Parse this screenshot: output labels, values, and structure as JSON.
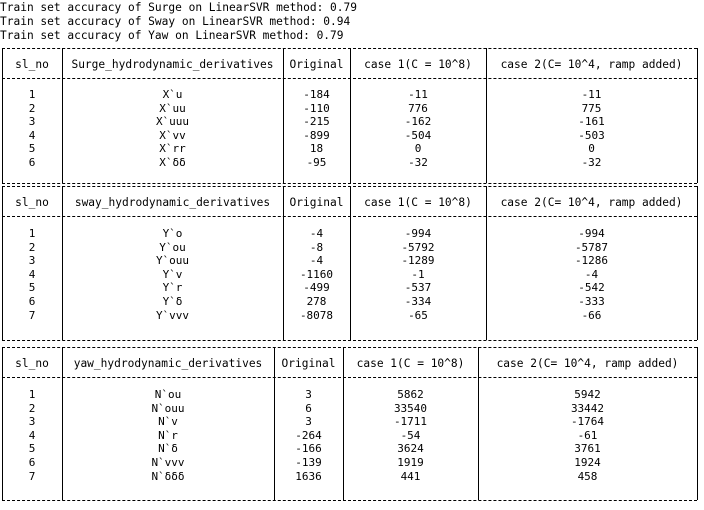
{
  "accuracy_lines": [
    "Train set accuracy of Surge on LinearSVR method: 0.79",
    "Train set accuracy of Sway on LinearSVR method: 0.94",
    "Train set accuracy of Yaw on LinearSVR method: 0.79"
  ],
  "tables": [
    {
      "headers": [
        "sl_no",
        "Surge_hydrodynamic_derivatives",
        "Original",
        "case 1(C = 10^8)",
        "case 2(C= 10^4, ramp added)"
      ],
      "rows": [
        [
          "1",
          "X`u",
          "-184",
          "-11",
          "-11"
        ],
        [
          "2",
          "X`uu",
          "-110",
          "776",
          "775"
        ],
        [
          "3",
          "X`uuu",
          "-215",
          "-162",
          "-161"
        ],
        [
          "4",
          "X`vv",
          "-899",
          "-504",
          "-503"
        ],
        [
          "5",
          "X`rr",
          "18",
          "0",
          "0"
        ],
        [
          "6",
          "X`δδ",
          "-95",
          "-32",
          "-32"
        ]
      ]
    },
    {
      "headers": [
        "sl_no",
        "sway_hydrodynamic_derivatives",
        "Original",
        "case 1(C = 10^8)",
        "case 2(C= 10^4, ramp added)"
      ],
      "rows": [
        [
          "1",
          "Y`o",
          "-4",
          "-994",
          "-994"
        ],
        [
          "2",
          "Y`ou",
          "-8",
          "-5792",
          "-5787"
        ],
        [
          "3",
          "Y`ouu",
          "-4",
          "-1289",
          "-1286"
        ],
        [
          "4",
          "Y`v",
          "-1160",
          "-1",
          "-4"
        ],
        [
          "5",
          "Y`r",
          "-499",
          "-537",
          "-542"
        ],
        [
          "6",
          "Y`δ",
          "278",
          "-334",
          "-333"
        ],
        [
          "7",
          "Y`vvv",
          "-8078",
          "-65",
          "-66"
        ]
      ]
    },
    {
      "headers": [
        "sl_no",
        "yaw_hydrodynamic_derivatives",
        "Original",
        "case 1(C = 10^8)",
        "case 2(C= 10^4, ramp added)"
      ],
      "rows": [
        [
          "1",
          "N`ou",
          "3",
          "5862",
          "5942"
        ],
        [
          "2",
          "N`ouu",
          "6",
          "33540",
          "33442"
        ],
        [
          "3",
          "N`v",
          "3",
          "-1711",
          "-1764"
        ],
        [
          "4",
          "N`r",
          "-264",
          "-54",
          "-61"
        ],
        [
          "5",
          "N`δ",
          "-166",
          "3624",
          "3761"
        ],
        [
          "6",
          "N`vvv",
          "-139",
          "1919",
          "1924"
        ],
        [
          "7",
          "N`δδδ",
          "1636",
          "441",
          "458"
        ]
      ]
    }
  ]
}
